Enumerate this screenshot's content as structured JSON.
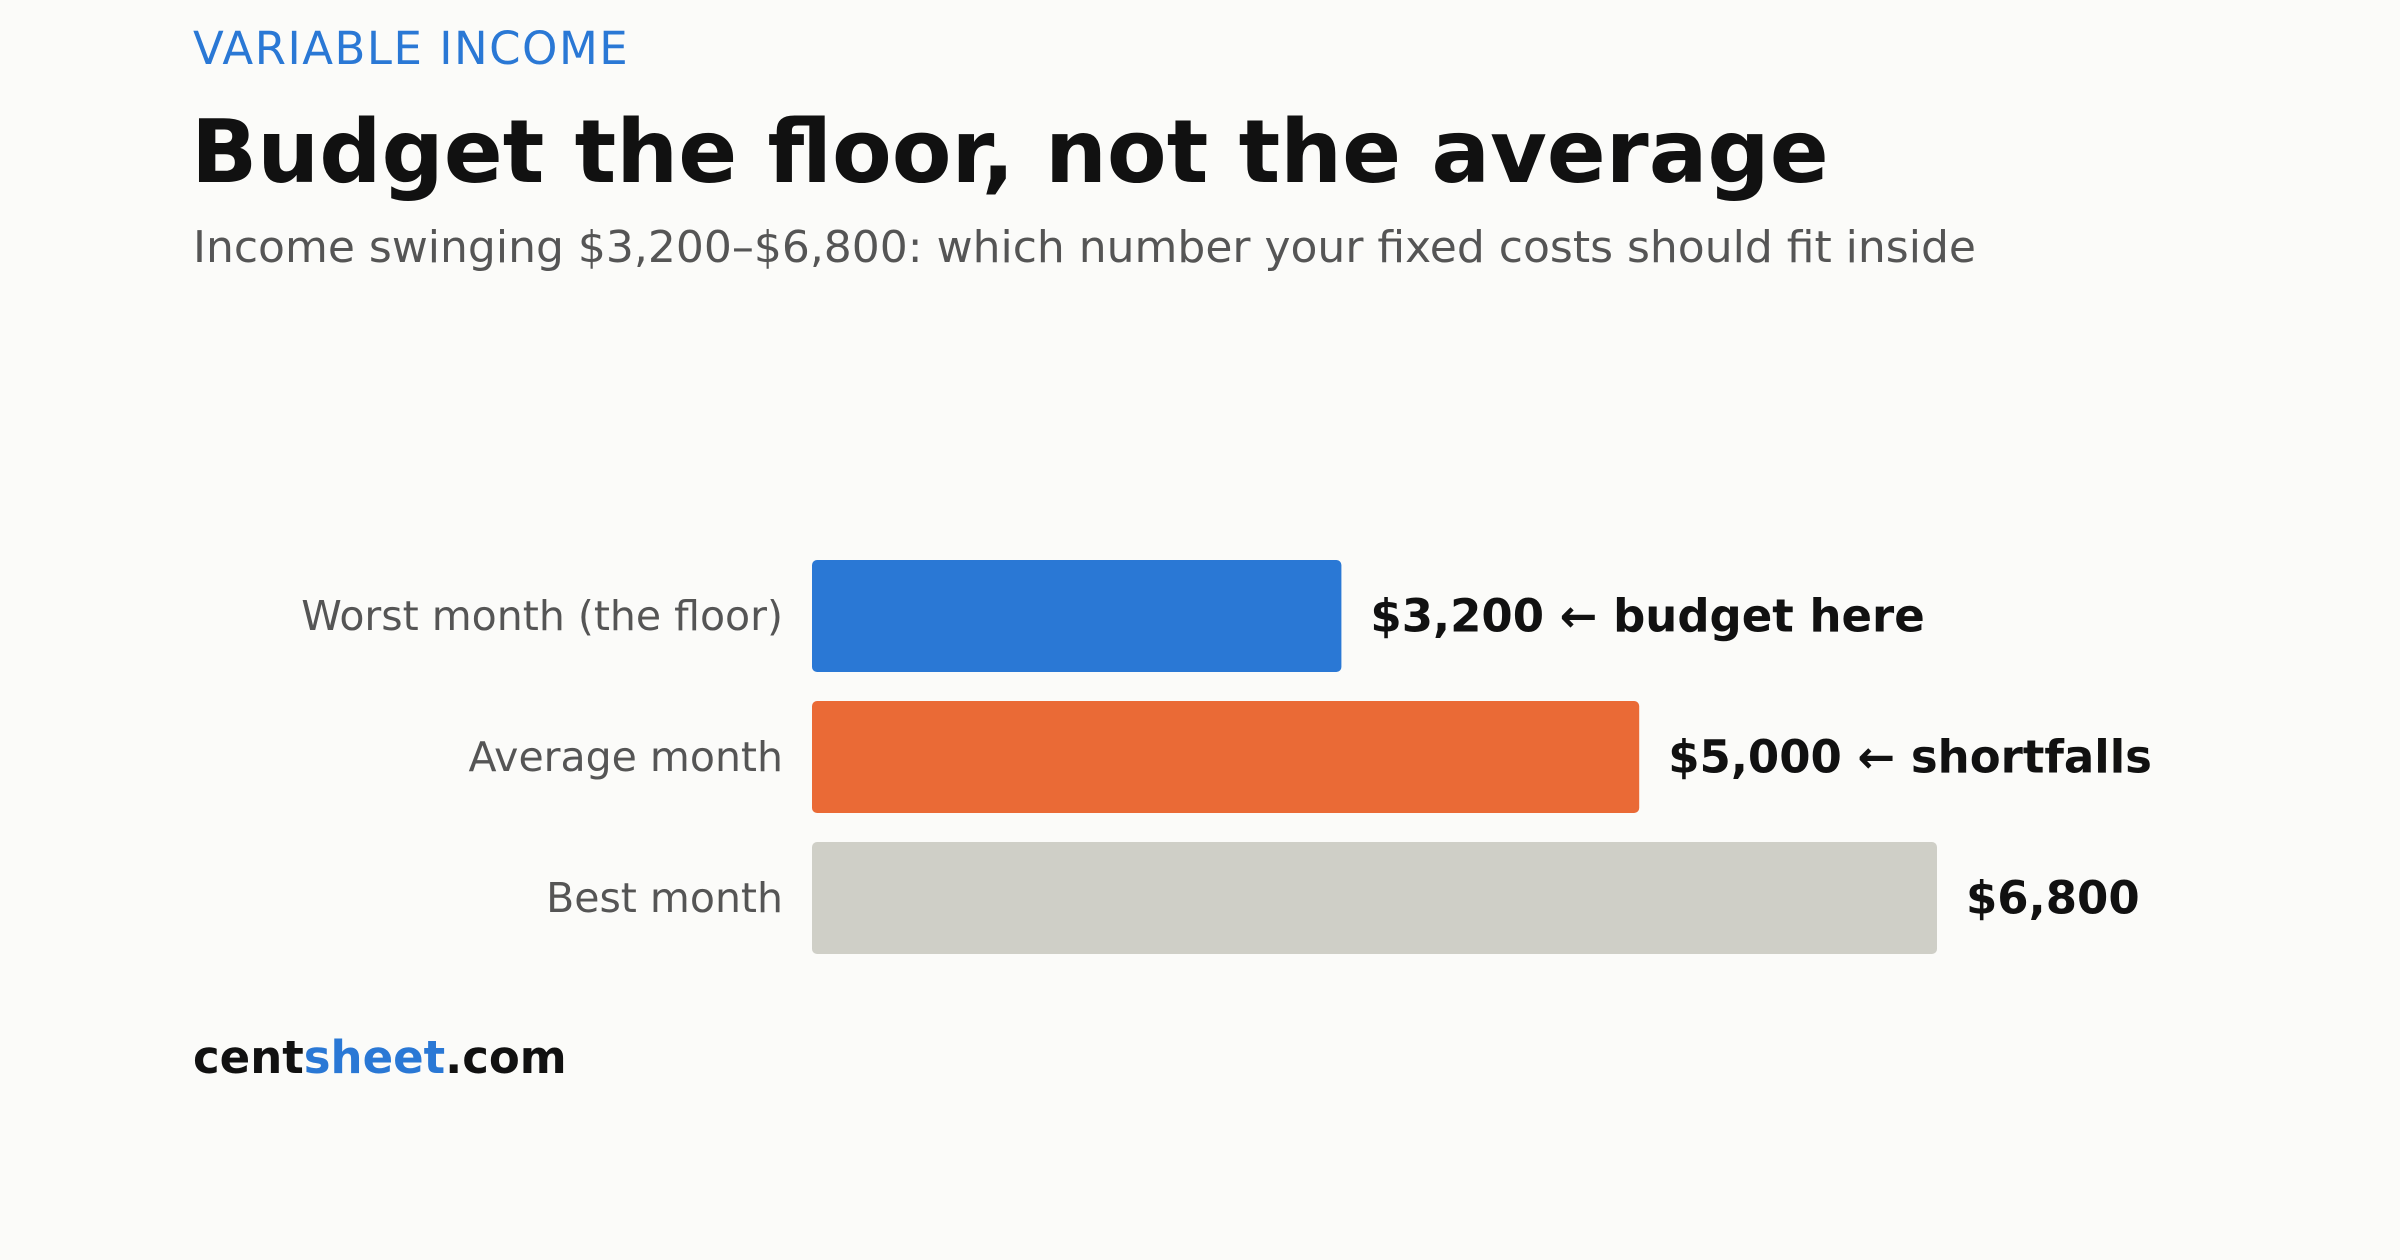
{
  "eyebrow": "VARIABLE INCOME",
  "title": "Budget the floor, not the average",
  "subtitle": "Income swinging $3,200–$6,800: which number your fixed costs should fit inside",
  "brand": {
    "part1": "cent",
    "part2": "sheet",
    "part3": ".com",
    "accent_color": "#2a78d5"
  },
  "chart_data": {
    "type": "bar",
    "orientation": "horizontal",
    "categories": [
      "Worst month (the floor)",
      "Average month",
      "Best month"
    ],
    "values": [
      3200,
      5000,
      6800
    ],
    "value_labels": [
      "$3,200 ← budget here",
      "$5,000 ← shortfalls",
      "$6,800"
    ],
    "colors": [
      "#2a78d5",
      "#ea6a36",
      "#cfcfc7"
    ],
    "xlim": [
      0,
      6800
    ],
    "grid": false,
    "legend": "none"
  }
}
